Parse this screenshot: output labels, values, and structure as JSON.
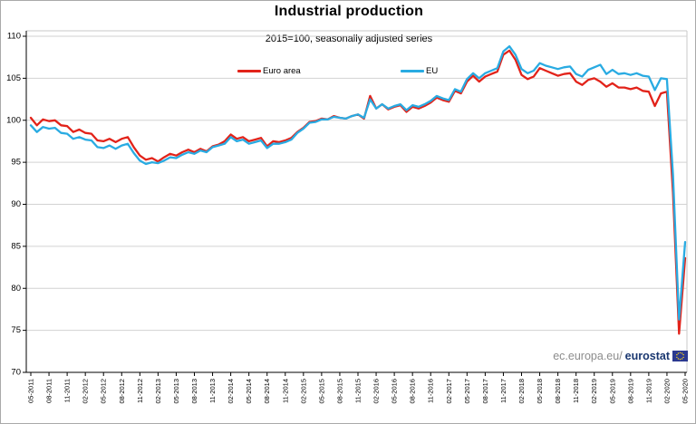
{
  "header": {
    "title": "Industrial production",
    "subtitle": "2015=100, seasonally adjusted series"
  },
  "legend": {
    "items": [
      {
        "label": "Euro area",
        "color": "#e2231a"
      },
      {
        "label": "EU",
        "color": "#29abe2"
      }
    ]
  },
  "watermark": {
    "prefix": "ec.europa.eu/",
    "brand": "eurostat",
    "brand_color": "#1a3770",
    "flag_icon": "eu-flag"
  },
  "chart_data": {
    "type": "line",
    "title": "Industrial production",
    "subtitle": "2015=100, seasonally adjusted series",
    "x_start": "05-2011",
    "x_end": "05-2020",
    "x_frequency": "monthly",
    "x_tick_labels": [
      "05-2011",
      "08-2011",
      "11-2011",
      "02-2012",
      "05-2012",
      "08-2012",
      "11-2012",
      "02-2013",
      "05-2013",
      "08-2013",
      "11-2013",
      "02-2014",
      "05-2014",
      "08-2014",
      "11-2014",
      "02-2015",
      "05-2015",
      "08-2015",
      "11-2015",
      "02-2016",
      "05-2016",
      "08-2016",
      "11-2016",
      "02-2017",
      "05-2017",
      "08-2017",
      "11-2017",
      "02-2018",
      "05-2018",
      "08-2018",
      "11-2018",
      "02-2019",
      "05-2019",
      "08-2019",
      "11-2019",
      "02-2020",
      "05-2020"
    ],
    "ylim": [
      70,
      110
    ],
    "y_ticks": [
      70,
      75,
      80,
      85,
      90,
      95,
      100,
      105,
      110
    ],
    "grid": "horizontal",
    "legend_position": "top-inside",
    "series": [
      {
        "name": "Euro area",
        "color": "#e2231a",
        "values": [
          100.3,
          99.4,
          100.1,
          99.9,
          100.0,
          99.4,
          99.3,
          98.6,
          98.9,
          98.5,
          98.4,
          97.6,
          97.5,
          97.8,
          97.4,
          97.8,
          98.0,
          96.8,
          95.8,
          95.3,
          95.5,
          95.1,
          95.6,
          96.0,
          95.8,
          96.2,
          96.5,
          96.2,
          96.6,
          96.3,
          96.9,
          97.1,
          97.5,
          98.3,
          97.8,
          98.0,
          97.5,
          97.7,
          97.9,
          96.9,
          97.5,
          97.4,
          97.6,
          97.9,
          98.6,
          99.1,
          99.8,
          99.9,
          100.2,
          100.1,
          100.5,
          100.3,
          100.2,
          100.5,
          100.7,
          100.2,
          102.9,
          101.4,
          101.9,
          101.3,
          101.6,
          101.8,
          101.0,
          101.6,
          101.4,
          101.7,
          102.1,
          102.7,
          102.4,
          102.2,
          103.5,
          103.2,
          104.6,
          105.3,
          104.6,
          105.2,
          105.5,
          105.8,
          107.8,
          108.3,
          107.2,
          105.4,
          104.9,
          105.2,
          106.2,
          105.9,
          105.6,
          105.3,
          105.5,
          105.6,
          104.6,
          104.2,
          104.8,
          105.0,
          104.6,
          104.0,
          104.4,
          103.9,
          103.9,
          103.7,
          103.9,
          103.5,
          103.4,
          101.7,
          103.2,
          103.4,
          91.4,
          74.6,
          83.6
        ]
      },
      {
        "name": "EU",
        "color": "#29abe2",
        "values": [
          99.4,
          98.6,
          99.2,
          99.0,
          99.1,
          98.5,
          98.4,
          97.8,
          98.0,
          97.7,
          97.6,
          96.8,
          96.7,
          97.0,
          96.6,
          97.0,
          97.2,
          96.1,
          95.2,
          94.8,
          95.0,
          94.9,
          95.2,
          95.6,
          95.5,
          95.9,
          96.2,
          96.0,
          96.4,
          96.2,
          96.8,
          97.0,
          97.2,
          98.0,
          97.5,
          97.7,
          97.2,
          97.4,
          97.6,
          96.7,
          97.2,
          97.2,
          97.4,
          97.7,
          98.5,
          99.0,
          99.7,
          99.8,
          100.1,
          100.1,
          100.4,
          100.3,
          100.2,
          100.5,
          100.7,
          100.3,
          102.5,
          101.4,
          101.9,
          101.4,
          101.7,
          101.9,
          101.2,
          101.8,
          101.6,
          101.9,
          102.3,
          102.9,
          102.6,
          102.4,
          103.7,
          103.4,
          104.9,
          105.6,
          105.0,
          105.6,
          105.9,
          106.2,
          108.2,
          108.8,
          107.8,
          106.1,
          105.6,
          105.9,
          106.8,
          106.5,
          106.3,
          106.1,
          106.3,
          106.4,
          105.5,
          105.2,
          106.0,
          106.3,
          106.6,
          105.5,
          106.0,
          105.5,
          105.6,
          105.4,
          105.6,
          105.3,
          105.2,
          103.6,
          105.0,
          104.9,
          93.5,
          76.3,
          85.5
        ]
      }
    ]
  }
}
